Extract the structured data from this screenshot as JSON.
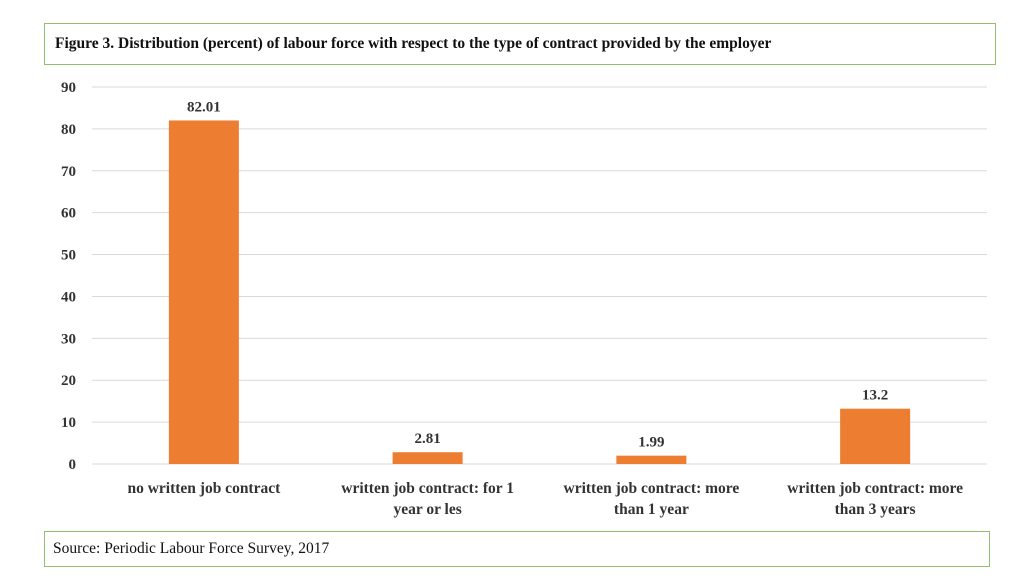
{
  "title": "Figure 3. Distribution (percent) of labour force with respect to the type of contract provided by the employer",
  "source": "Source: Periodic Labour Force Survey, 2017",
  "colors": {
    "bar": "#ed7d31",
    "grid": "#d9d9d9",
    "frame": "#8fbf6f"
  },
  "chart_data": {
    "type": "bar",
    "categories": [
      [
        "no written job contract"
      ],
      [
        "written job contract: for 1",
        "year or les"
      ],
      [
        "written job contract: more",
        "than 1 year"
      ],
      [
        "written job contract: more",
        "than 3 years"
      ]
    ],
    "values": [
      82.01,
      2.81,
      1.99,
      13.2
    ],
    "value_labels": [
      "82.01",
      "2.81",
      "1.99",
      "13.2"
    ],
    "ylim": [
      0,
      90
    ],
    "yticks": [
      "0",
      "10",
      "20",
      "30",
      "40",
      "50",
      "60",
      "70",
      "80",
      "90"
    ],
    "grid": true,
    "legend": "none"
  }
}
